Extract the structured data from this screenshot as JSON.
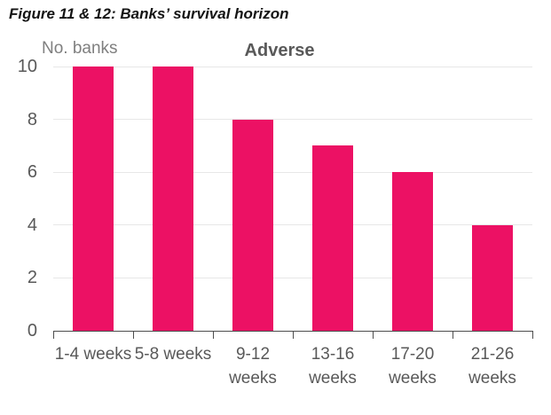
{
  "header": {
    "title": "Figure 11 & 12: Banks’ survival horizon"
  },
  "chart_data": {
    "type": "bar",
    "title": "Adverse",
    "y_axis_title": "No. banks",
    "xlabel": "",
    "ylabel": "No. banks",
    "categories": [
      "1-4 weeks",
      "5-8 weeks",
      "9-12 weeks",
      "13-16 weeks",
      "17-20 weeks",
      "21-26 weeks"
    ],
    "values": [
      10,
      10,
      8,
      7,
      6,
      4
    ],
    "ylim": [
      0,
      10
    ],
    "yticks": [
      0,
      2,
      4,
      6,
      8,
      10
    ],
    "category_label_lines": [
      [
        "1-4 weeks"
      ],
      [
        "5-8 weeks"
      ],
      [
        "9-12",
        "weeks"
      ],
      [
        "13-16",
        "weeks"
      ],
      [
        "17-20",
        "weeks"
      ],
      [
        "21-26",
        "weeks"
      ]
    ],
    "grid": true,
    "legend_position": "none",
    "colors": {
      "bar": "#EC1164",
      "grid": "#E7E7E7",
      "axis": "#4D4D4D",
      "tick_label": "#595959",
      "chart_title": "#595959",
      "y_axis_title": "#7F7F7F",
      "figure_title": "#141414"
    }
  }
}
